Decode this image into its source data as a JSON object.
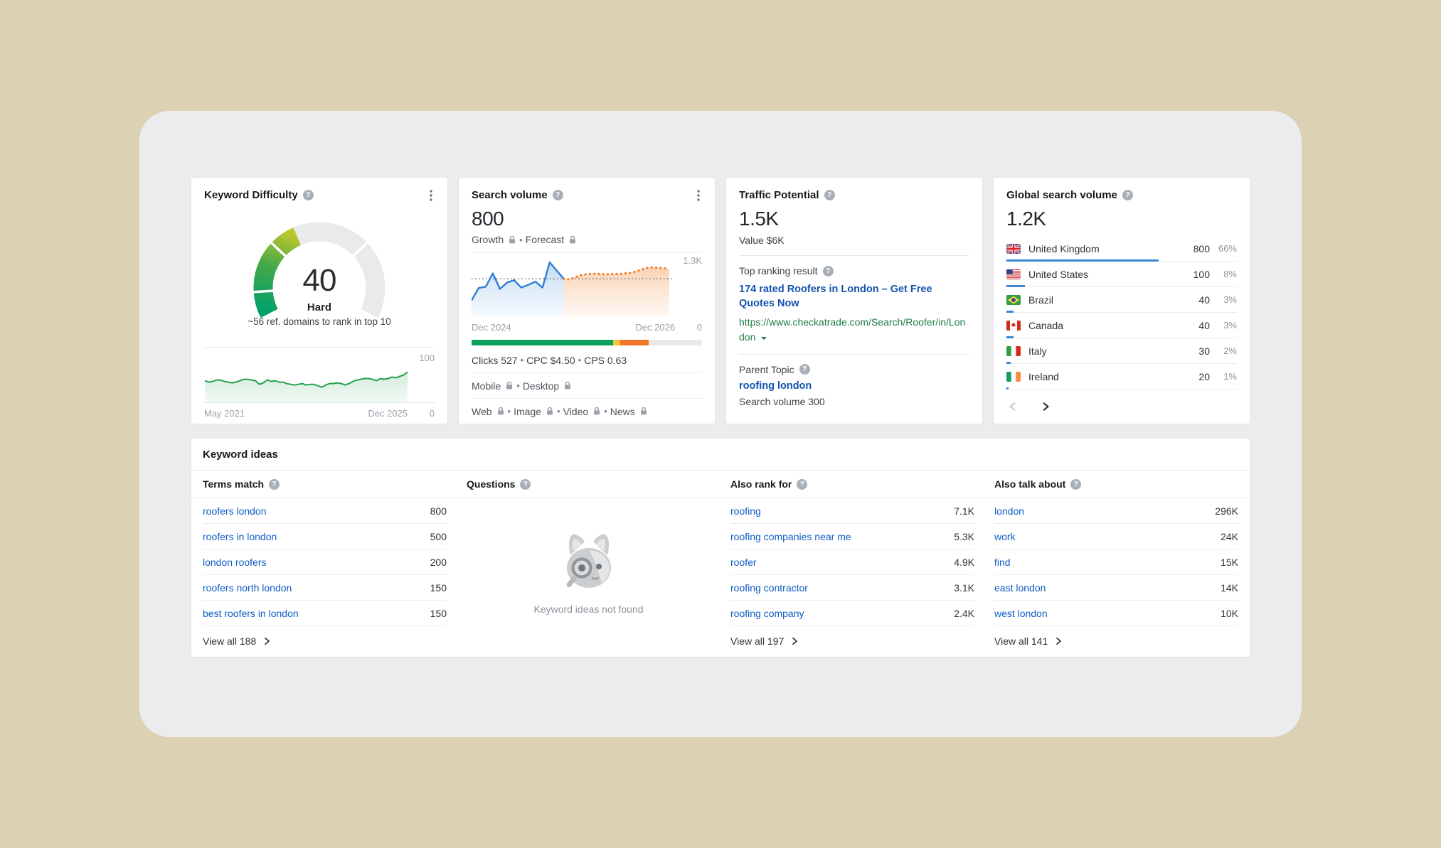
{
  "colors": {
    "page_bg": "#ddd1b4",
    "panel_bg": "#ebecee",
    "link_blue": "#0e5cc4",
    "headline_blue": "#1353ad",
    "url_green": "#1e7c45",
    "bar_blue": "#3d87d3",
    "history_blue": "#2e7ed8",
    "forecast_orange": "#f07e27",
    "kd_green": "#26a14f",
    "clicks_green": "#0aa05e",
    "clicks_yellow": "#f3c63e",
    "clicks_orange": "#f2762a"
  },
  "cards": {
    "kd": {
      "title": "Keyword Difficulty",
      "value": "40",
      "label": "Hard",
      "note": "~56 ref. domains to rank in top 10",
      "y_max": "100",
      "y_min": "0",
      "x_start": "May 2021",
      "x_end": "Dec 2025"
    },
    "sv": {
      "title": "Search volume",
      "value": "800",
      "growth_label": "Growth",
      "forecast_label": "Forecast",
      "y_max": "1.3K",
      "y_min": "0",
      "x_start": "Dec 2024",
      "x_end": "Dec 2026",
      "clicks": "Clicks 527",
      "cpc": "CPC $4.50",
      "cps": "CPS 0.63",
      "mobile": "Mobile",
      "desktop": "Desktop",
      "web": "Web",
      "image": "Image",
      "video": "Video",
      "news": "News"
    },
    "tp": {
      "title": "Traffic Potential",
      "value": "1.5K",
      "value_label": "Value $6K",
      "top_label": "Top ranking result",
      "headline": "174 rated Roofers in London – Get Free Quotes Now",
      "url": "https://www.checkatrade.com/Search/Roofer/in/London",
      "parent_label": "Parent Topic",
      "parent_topic": "roofing london",
      "parent_volume": "Search volume 300"
    },
    "gsv": {
      "title": "Global search volume",
      "value": "1.2K",
      "countries": [
        {
          "name": "United Kingdom",
          "flag": "gb",
          "value": "800",
          "pct": "66%",
          "bar_pct": 66
        },
        {
          "name": "United States",
          "flag": "us",
          "value": "100",
          "pct": "8%",
          "bar_pct": 8
        },
        {
          "name": "Brazil",
          "flag": "br",
          "value": "40",
          "pct": "3%",
          "bar_pct": 3
        },
        {
          "name": "Canada",
          "flag": "ca",
          "value": "40",
          "pct": "3%",
          "bar_pct": 3
        },
        {
          "name": "Italy",
          "flag": "it",
          "value": "30",
          "pct": "2%",
          "bar_pct": 2
        },
        {
          "name": "Ireland",
          "flag": "ie",
          "value": "20",
          "pct": "1%",
          "bar_pct": 1
        }
      ]
    }
  },
  "ideas": {
    "title": "Keyword ideas",
    "columns": [
      {
        "key": "terms-match",
        "label": "Terms match",
        "type": "list",
        "rows": [
          {
            "text": "roofers london",
            "value": "800"
          },
          {
            "text": "roofers in london",
            "value": "500"
          },
          {
            "text": "london roofers",
            "value": "200"
          },
          {
            "text": "roofers north london",
            "value": "150"
          },
          {
            "text": "best roofers in london",
            "value": "150"
          }
        ],
        "view_all": "View all 188"
      },
      {
        "key": "questions",
        "label": "Questions",
        "type": "empty",
        "empty_text": "Keyword ideas not found"
      },
      {
        "key": "also-rank-for",
        "label": "Also rank for",
        "type": "list",
        "rows": [
          {
            "text": "roofing",
            "value": "7.1K"
          },
          {
            "text": "roofing companies near me",
            "value": "5.3K"
          },
          {
            "text": "roofer",
            "value": "4.9K"
          },
          {
            "text": "roofing contractor",
            "value": "3.1K"
          },
          {
            "text": "roofing company",
            "value": "2.4K"
          }
        ],
        "view_all": "View all 197"
      },
      {
        "key": "also-talk-about",
        "label": "Also talk about",
        "type": "list",
        "rows": [
          {
            "text": "london",
            "value": "296K"
          },
          {
            "text": "work",
            "value": "24K"
          },
          {
            "text": "find",
            "value": "15K"
          },
          {
            "text": "east london",
            "value": "14K"
          },
          {
            "text": "west london",
            "value": "10K"
          }
        ],
        "view_all": "View all 141"
      }
    ]
  },
  "chart_data": [
    {
      "type": "gauge",
      "title": "Keyword Difficulty",
      "value": 40,
      "max": 100,
      "label": "Hard",
      "segment_boundaries": [
        10,
        30,
        70
      ],
      "start_angle_deg": 207,
      "sweep_deg": 234,
      "gradient": [
        "#00a169",
        "#45a84a",
        "#bcc72c"
      ],
      "track_color": "#e9eaec"
    },
    {
      "type": "area",
      "title": "Keyword Difficulty history",
      "x_start": "May 2021",
      "x_end": "Dec 2025",
      "ylim": [
        0,
        100
      ],
      "values": [
        30,
        28,
        29,
        31,
        31,
        29,
        28,
        27,
        28,
        30,
        32,
        32,
        31,
        30,
        25,
        27,
        31,
        29,
        30,
        28,
        28,
        26,
        25,
        24,
        25,
        26,
        24,
        25,
        25,
        23,
        21,
        24,
        26,
        26,
        27,
        26,
        24,
        26,
        29,
        31,
        32,
        33,
        33,
        32,
        30,
        33,
        32,
        33,
        35,
        34,
        36,
        38,
        42
      ]
    },
    {
      "type": "line-forecast",
      "title": "Search volume history and forecast",
      "x_start": "Dec 2024",
      "x_end": "Dec 2026",
      "ylim_k": [
        0,
        1.3
      ],
      "reference_value_k": 0.8,
      "history_end_fraction": 0.46,
      "history_k": [
        0.33,
        0.6,
        0.63,
        0.92,
        0.58,
        0.72,
        0.77,
        0.61,
        0.67,
        0.74,
        0.61,
        1.16,
        0.98,
        0.8
      ],
      "forecast_k": [
        0.8,
        0.79,
        0.83,
        0.88,
        0.9,
        0.91,
        0.91,
        0.9,
        0.9,
        0.91,
        0.9,
        0.92,
        0.93,
        0.96,
        1.0,
        1.04,
        1.05,
        1.04,
        1.03,
        1.02
      ],
      "clicks_distribution": [
        {
          "name": "organic",
          "pct": 61.5,
          "color": "#0aa05e"
        },
        {
          "name": "paid",
          "pct": 3,
          "color": "#f3c63e"
        },
        {
          "name": "other",
          "pct": 12.5,
          "color": "#f2762a"
        }
      ]
    }
  ]
}
